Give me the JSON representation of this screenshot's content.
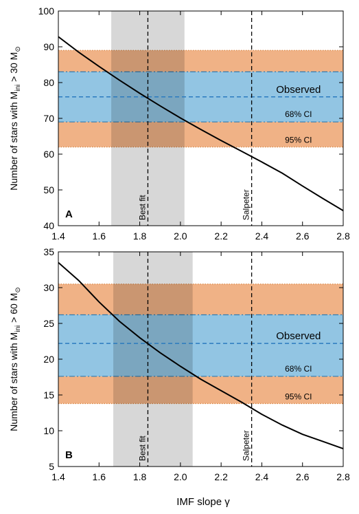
{
  "figure": {
    "xlabel": "IMF slope γ",
    "x_ticks": [
      "1.4",
      "1.6",
      "1.8",
      "2.0",
      "2.2",
      "2.4",
      "2.6",
      "2.8"
    ],
    "colors": {
      "ci95": "#f0b286",
      "ci95_border": "#d9823f",
      "ci68": "#92c5e3",
      "ci68_border": "#2f7db3",
      "observed": "#2b7bbf",
      "ci68_label": "#2b7bbf",
      "ci95_label": "#e07020",
      "gray_band": "#bcbcbc",
      "curve": "#000000"
    }
  },
  "chart_data": [
    {
      "type": "line",
      "panel_label": "A",
      "ylabel_main": "Number of stars with M",
      "ylabel_sub": "ini",
      "ylabel_tail": " > 30 M",
      "ylabel_sun": "⊙",
      "xlim": [
        1.4,
        2.8
      ],
      "ylim": [
        40,
        100
      ],
      "y_ticks": [
        "40",
        "50",
        "60",
        "70",
        "80",
        "90",
        "100"
      ],
      "curve": {
        "x": [
          1.4,
          1.5,
          1.6,
          1.7,
          1.8,
          1.9,
          2.0,
          2.1,
          2.2,
          2.3,
          2.4,
          2.5,
          2.6,
          2.7,
          2.8
        ],
        "y": [
          92.8,
          88.5,
          84.5,
          80.7,
          77.0,
          73.5,
          70.1,
          66.9,
          63.8,
          60.8,
          57.8,
          54.7,
          51.1,
          47.6,
          44.2
        ]
      },
      "observed": 76,
      "ci68": [
        69,
        83
      ],
      "ci95": [
        62,
        89
      ],
      "best_fit_band": [
        1.66,
        2.02
      ],
      "best_fit": 1.84,
      "salpeter": 2.35,
      "labels": {
        "observed": "Observed",
        "ci68": "68% CI",
        "ci95": "95% CI",
        "best_fit": "Best fit",
        "salpeter": "Salpeter"
      }
    },
    {
      "type": "line",
      "panel_label": "B",
      "ylabel_main": "Number of stars with M",
      "ylabel_sub": "ini",
      "ylabel_tail": " > 60 M",
      "ylabel_sun": "⊙",
      "xlim": [
        1.4,
        2.8
      ],
      "ylim": [
        5,
        35
      ],
      "y_ticks": [
        "5",
        "10",
        "15",
        "20",
        "25",
        "30",
        "35"
      ],
      "curve": {
        "x": [
          1.4,
          1.5,
          1.6,
          1.7,
          1.8,
          1.9,
          2.0,
          2.1,
          2.2,
          2.3,
          2.4,
          2.5,
          2.6,
          2.7,
          2.8
        ],
        "y": [
          33.5,
          31.0,
          28.0,
          25.3,
          23.0,
          20.9,
          19.0,
          17.2,
          15.6,
          14.0,
          12.3,
          10.8,
          9.5,
          8.5,
          7.5
        ]
      },
      "observed": 22.2,
      "ci68": [
        17.6,
        26.2
      ],
      "ci95": [
        13.8,
        30.5
      ],
      "best_fit_band": [
        1.67,
        2.06
      ],
      "best_fit": 1.84,
      "salpeter": 2.35,
      "labels": {
        "observed": "Observed",
        "ci68": "68% CI",
        "ci95": "95% CI",
        "best_fit": "Best fit",
        "salpeter": "Salpeter"
      }
    }
  ]
}
